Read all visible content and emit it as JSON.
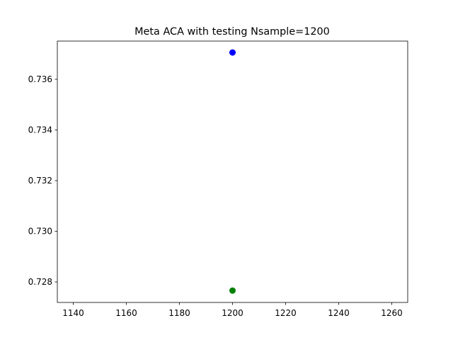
{
  "chart_data": {
    "type": "scatter",
    "title": "Meta ACA with testing Nsample=1200",
    "series": [
      {
        "color": "#0000ff",
        "x": [
          1200
        ],
        "values": [
          0.73706
        ]
      },
      {
        "color": "#008000",
        "x": [
          1200
        ],
        "values": [
          0.72766
        ]
      }
    ],
    "xlim": [
      1134,
      1266
    ],
    "xticks": [
      1140,
      1160,
      1180,
      1200,
      1220,
      1240,
      1260
    ],
    "ylim": [
      0.72719,
      0.73751
    ],
    "yticks": [
      {
        "value": 0.728,
        "label": "0.728"
      },
      {
        "value": 0.73,
        "label": "0.730"
      },
      {
        "value": 0.732,
        "label": "0.732"
      },
      {
        "value": 0.734,
        "label": "0.734"
      },
      {
        "value": 0.736,
        "label": "0.736"
      }
    ]
  }
}
